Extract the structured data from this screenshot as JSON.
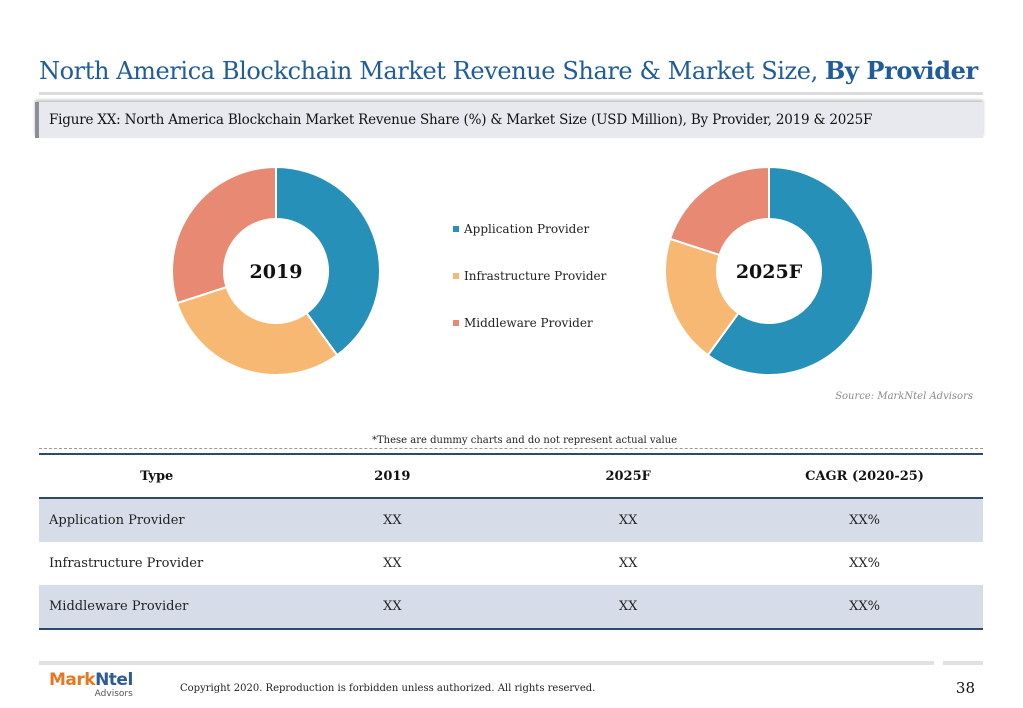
{
  "header": {
    "title_main": "North America Blockchain Market Revenue Share & Market Size, ",
    "title_bold": "By Provider",
    "figure_caption": "Figure XX: North America Blockchain Market Revenue Share (%) & Market Size (USD Million), By Provider, 2019 & 2025F"
  },
  "chart_data": [
    {
      "type": "pie",
      "subtype": "donut",
      "title": "2019",
      "categories": [
        "Application Provider",
        "Infrastructure Provider",
        "Middleware Provider"
      ],
      "values": [
        40,
        30,
        30
      ],
      "colors": [
        "#2690b9",
        "#f6b872",
        "#e88a73"
      ]
    },
    {
      "type": "pie",
      "subtype": "donut",
      "title": "2025F",
      "categories": [
        "Application Provider",
        "Infrastructure Provider",
        "Middleware Provider"
      ],
      "values": [
        60,
        20,
        20
      ],
      "colors": [
        "#2690b9",
        "#f6b872",
        "#e88a73"
      ]
    }
  ],
  "legend": {
    "position": "center",
    "items": [
      {
        "label": "Application Provider",
        "color": "#2690b9"
      },
      {
        "label": "Infrastructure Provider",
        "color": "#f6b872"
      },
      {
        "label": "Middleware Provider",
        "color": "#e88a73"
      }
    ]
  },
  "source": "Source: MarkNtel Advisors",
  "note": "*These are dummy charts and do not represent actual value",
  "table": {
    "headers": [
      "Type",
      "2019",
      "2025F",
      "CAGR (2020-25)"
    ],
    "rows": [
      [
        "Application Provider",
        "XX",
        "XX",
        "XX%"
      ],
      [
        "Infrastructure Provider",
        "XX",
        "XX",
        "XX%"
      ],
      [
        "Middleware Provider",
        "XX",
        "XX",
        "XX%"
      ]
    ]
  },
  "footer": {
    "logo_main": "Mark",
    "logo_accent": "Ntel",
    "logo_sub": "Advisors",
    "copyright": "Copyright 2020. Reproduction is forbidden unless authorized. All rights reserved.",
    "page_number": "38"
  }
}
